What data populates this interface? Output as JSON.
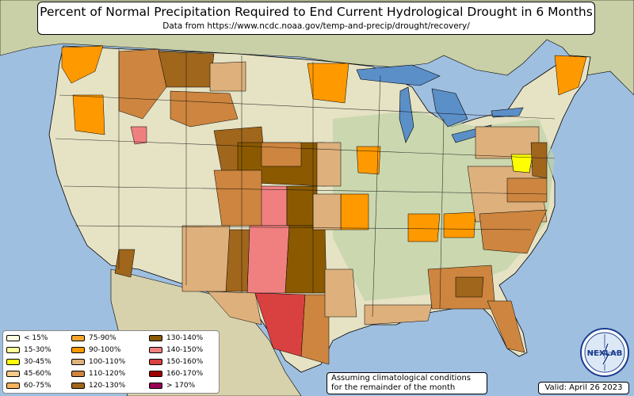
{
  "title": "Percent of Normal Precipitation Required to End Current Hydrological Drought in 6 Months",
  "subtitle": "Data from https://www.ncdc.noaa.gov/temp-and-precip/drought/recovery/",
  "legend": [
    {
      "label": "< 15%",
      "color": "#ffffe0"
    },
    {
      "label": "15-30%",
      "color": "#ffff99"
    },
    {
      "label": "30-45%",
      "color": "#ffff00"
    },
    {
      "label": "45-60%",
      "color": "#f5c98a"
    },
    {
      "label": "60-75%",
      "color": "#f7b45c"
    },
    {
      "label": "75-90%",
      "color": "#f4a52c"
    },
    {
      "label": "90-100%",
      "color": "#ff9900"
    },
    {
      "label": "100-110%",
      "color": "#ddb07c"
    },
    {
      "label": "110-120%",
      "color": "#cd853f"
    },
    {
      "label": "120-130%",
      "color": "#a0661c"
    },
    {
      "label": "130-140%",
      "color": "#8b5a00"
    },
    {
      "label": "140-150%",
      "color": "#f08080"
    },
    {
      "label": "150-160%",
      "color": "#d94040"
    },
    {
      "label": "160-170%",
      "color": "#a00000"
    },
    {
      "label": "> 170%",
      "color": "#990055"
    }
  ],
  "note": {
    "line1": "Assuming climatological conditions",
    "line2": "for the remainder of the month"
  },
  "valid": "Valid: April 26 2023",
  "logo_text": "NEXLAB",
  "colors": {
    "water": "#9fbfe0",
    "land": "#e6e2c4",
    "land_green": "#b9cfa0",
    "great_lakes": "#5b8fc8",
    "border": "#000000"
  }
}
